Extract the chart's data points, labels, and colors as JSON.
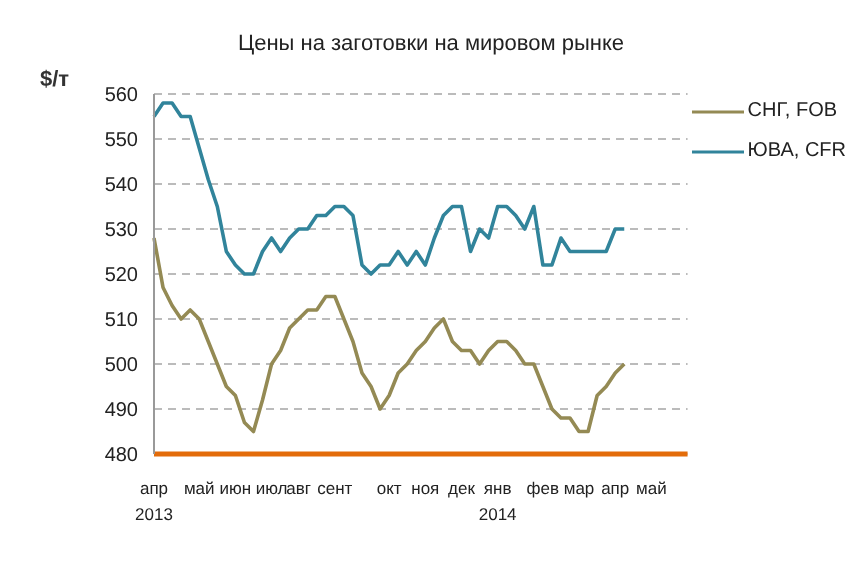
{
  "chart_data": {
    "type": "line",
    "title": "Цены на заготовки на мировом рынке",
    "ylabel": "$/т",
    "categories": [
      "апр\n2013",
      null,
      null,
      null,
      null,
      "май",
      null,
      null,
      null,
      "июн",
      null,
      null,
      null,
      "июл",
      null,
      null,
      "авг",
      null,
      null,
      null,
      "сент",
      null,
      null,
      null,
      null,
      null,
      "окт",
      null,
      null,
      null,
      "ноя",
      null,
      null,
      null,
      "дек",
      null,
      null,
      null,
      "янв\n2014",
      null,
      null,
      null,
      null,
      "фев",
      null,
      null,
      null,
      "мар",
      null,
      null,
      null,
      "апр",
      null,
      null,
      null,
      "май",
      null,
      null,
      null,
      null
    ],
    "series": [
      {
        "name": "СНГ, FOB",
        "color": "#948a54",
        "values": [
          528,
          517,
          513,
          510,
          512,
          510,
          505,
          500,
          495,
          493,
          487,
          485,
          492,
          500,
          503,
          508,
          510,
          512,
          512,
          515,
          515,
          510,
          505,
          498,
          495,
          490,
          493,
          498,
          500,
          503,
          505,
          508,
          510,
          505,
          503,
          503,
          500,
          503,
          505,
          505,
          503,
          500,
          500,
          495,
          490,
          488,
          488,
          485,
          485,
          493,
          495,
          498,
          500,
          null,
          null,
          null,
          null,
          null,
          null,
          null
        ]
      },
      {
        "name": "ЮВА, CFR",
        "color": "#31849b",
        "values": [
          555,
          558,
          558,
          555,
          555,
          548,
          541,
          535,
          525,
          522,
          520,
          520,
          525,
          528,
          525,
          528,
          530,
          530,
          533,
          533,
          535,
          535,
          533,
          522,
          520,
          522,
          522,
          525,
          522,
          525,
          522,
          528,
          533,
          535,
          535,
          525,
          530,
          528,
          535,
          535,
          533,
          530,
          535,
          522,
          522,
          528,
          525,
          525,
          525,
          525,
          525,
          530,
          530,
          null,
          null,
          null,
          null,
          null,
          null,
          null
        ]
      }
    ],
    "ylim": [
      480,
      560
    ],
    "yticks": [
      480,
      490,
      500,
      510,
      520,
      530,
      540,
      550,
      560
    ],
    "grid": "y",
    "legend": "top right",
    "marker": "none",
    "line_style": "solid"
  }
}
